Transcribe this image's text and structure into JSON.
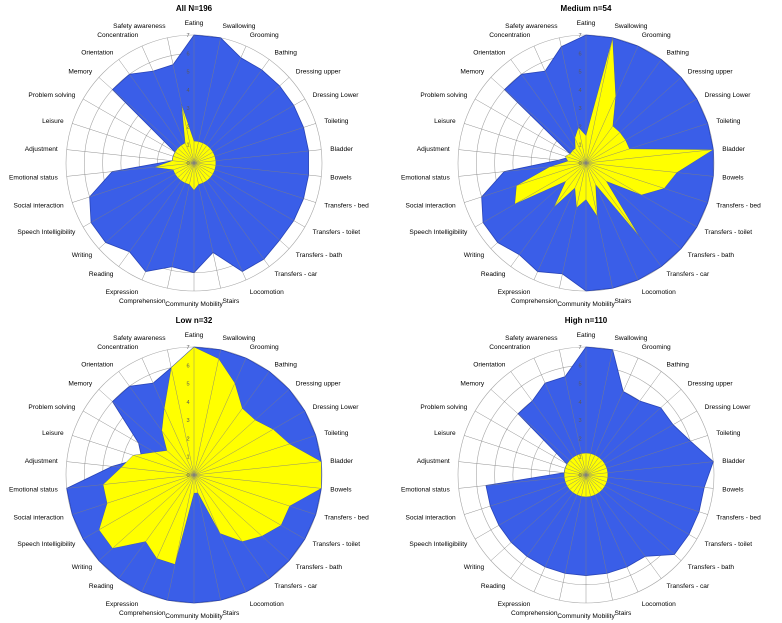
{
  "chart_data": [
    {
      "type": "radar",
      "title": "All N=196",
      "rlim": [
        0,
        7
      ],
      "r_ticks": [
        "0",
        "1",
        "2",
        "3",
        "4",
        "5",
        "6",
        "7"
      ],
      "grid": true,
      "categories": [
        "Eating",
        "Swallowing",
        "Grooming",
        "Bathing",
        "Dressing upper",
        "Dressing Lower",
        "Toileting",
        "Bladder",
        "Bowels",
        "Transfers - bed",
        "Transfers - toilet",
        "Transfers - bath",
        "Transfers - car",
        "Locomotion",
        "Stairs",
        "Community Mobility",
        "Comprehension",
        "Expression",
        "Reading",
        "Writing",
        "Speech Intelligibility",
        "Social interaction",
        "Emotional status",
        "Adjustment",
        "Leisure",
        "Problem solving",
        "Memory",
        "Orientation",
        "Concentration",
        "Safety awareness"
      ],
      "series": [
        {
          "color": "#3a5ee8",
          "values": [
            7,
            7,
            6.3,
            6.3,
            6.3,
            6.3,
            6.3,
            6.3,
            6.3,
            6.3,
            6.3,
            6.3,
            6.5,
            6.5,
            5,
            6,
            5.8,
            6.5,
            6,
            6.5,
            6.5,
            6,
            4.5,
            1.2,
            1.2,
            1.2,
            6,
            6,
            5.5,
            5.5
          ]
        },
        {
          "color": "#ffff00",
          "values": [
            1.2,
            1.2,
            1.2,
            1.2,
            1.2,
            1.2,
            1.2,
            1.2,
            1.2,
            1.2,
            1.2,
            1.2,
            1.2,
            1.2,
            1.2,
            1.5,
            1.2,
            1.2,
            1.2,
            1.2,
            1.2,
            1.2,
            2.2,
            1.2,
            1.2,
            1.2,
            1.2,
            1.2,
            1.2,
            3.3
          ]
        }
      ]
    },
    {
      "type": "radar",
      "title": "Medium n=54",
      "rlim": [
        0,
        7
      ],
      "r_ticks": [
        "0",
        "1",
        "2",
        "3",
        "4",
        "5",
        "6",
        "7"
      ],
      "grid": true,
      "categories": [
        "Eating",
        "Swallowing",
        "Grooming",
        "Bathing",
        "Dressing upper",
        "Dressing Lower",
        "Toileting",
        "Bladder",
        "Bowels",
        "Transfers - bed",
        "Transfers - toilet",
        "Transfers - bath",
        "Transfers - car",
        "Locomotion",
        "Stairs",
        "Community Mobility",
        "Comprehension",
        "Expression",
        "Reading",
        "Writing",
        "Speech Intelligibility",
        "Social interaction",
        "Emotional status",
        "Adjustment",
        "Leisure",
        "Problem solving",
        "Memory",
        "Orientation",
        "Concentration",
        "Safety awareness"
      ],
      "series": [
        {
          "color": "#3a5ee8",
          "values": [
            7,
            7,
            7,
            7,
            7,
            7,
            7,
            7,
            7,
            7,
            7,
            7,
            7,
            7,
            7,
            7,
            6.2,
            6.5,
            6.2,
            6.5,
            6.5,
            6,
            4.5,
            1.5,
            1,
            1,
            6,
            6,
            5.5,
            6.5
          ]
        },
        {
          "color": "#ffff00",
          "values": [
            1.5,
            7,
            4,
            2.5,
            2.5,
            2.5,
            2.5,
            7,
            5,
            4.5,
            3.5,
            1.5,
            5,
            1.3,
            3,
            2,
            2.5,
            1.5,
            3,
            1.5,
            4.5,
            4,
            2,
            1,
            1.2,
            1,
            1,
            1,
            1.5,
            2
          ]
        }
      ]
    },
    {
      "type": "radar",
      "title": "Low n=32",
      "rlim": [
        0,
        7
      ],
      "r_ticks": [
        "0",
        "1",
        "2",
        "3",
        "4",
        "5",
        "6",
        "7"
      ],
      "grid": true,
      "categories": [
        "Eating",
        "Swallowing",
        "Grooming",
        "Bathing",
        "Dressing upper",
        "Dressing Lower",
        "Toileting",
        "Bladder",
        "Bowels",
        "Transfers - bed",
        "Transfers - toilet",
        "Transfers - bath",
        "Transfers - car",
        "Locomotion",
        "Stairs",
        "Community Mobility",
        "Comprehension",
        "Expression",
        "Reading",
        "Writing",
        "Speech Intelligibility",
        "Social interaction",
        "Emotional status",
        "Adjustment",
        "Leisure",
        "Problem solving",
        "Memory",
        "Orientation",
        "Concentration",
        "Safety awareness"
      ],
      "series": [
        {
          "color": "#3a5ee8",
          "values": [
            7,
            7,
            7,
            7,
            7,
            7,
            7,
            7,
            7,
            7,
            7,
            7,
            7,
            7,
            7,
            7,
            7,
            7,
            7,
            7,
            7,
            7,
            7,
            4.5,
            3,
            3.5,
            6,
            6,
            5.5,
            6
          ]
        },
        {
          "color": "#ffff00",
          "values": [
            7,
            6.5,
            5.5,
            4.5,
            4.5,
            5,
            5.5,
            7,
            7,
            5.5,
            5.5,
            5,
            4.5,
            3.5,
            1,
            1,
            5,
            5,
            4.5,
            6,
            6,
            5,
            5,
            4,
            3.5,
            2.5,
            2,
            3,
            4,
            6
          ]
        }
      ]
    },
    {
      "type": "radar",
      "title": "High n=110",
      "rlim": [
        0,
        7
      ],
      "r_ticks": [
        "0",
        "1",
        "2",
        "3",
        "4",
        "5",
        "6",
        "7"
      ],
      "grid": true,
      "categories": [
        "Eating",
        "Swallowing",
        "Grooming",
        "Bathing",
        "Dressing upper",
        "Dressing Lower",
        "Toileting",
        "Bladder",
        "Bowels",
        "Transfers - bed",
        "Transfers - toilet",
        "Transfers - bath",
        "Transfers - car",
        "Locomotion",
        "Stairs",
        "Community Mobility",
        "Comprehension",
        "Expression",
        "Reading",
        "Writing",
        "Speech Intelligibility",
        "Social interaction",
        "Emotional status",
        "Adjustment",
        "Leisure",
        "Problem solving",
        "Memory",
        "Orientation",
        "Concentration",
        "Safety awareness"
      ],
      "series": [
        {
          "color": "#3a5ee8",
          "values": [
            7,
            7,
            5,
            5,
            5.5,
            5.5,
            6,
            7,
            6.5,
            6.5,
            6.5,
            6.5,
            5.5,
            5.5,
            5.5,
            5.5,
            5.5,
            5.5,
            5.5,
            5.5,
            5.5,
            5.5,
            5.5,
            1.2,
            1.2,
            1.2,
            5,
            5,
            5.5,
            5.5
          ]
        },
        {
          "color": "#ffff00",
          "values": [
            1.2,
            1.2,
            1.2,
            1.2,
            1.2,
            1.2,
            1.2,
            1.2,
            1.2,
            1.2,
            1.2,
            1.2,
            1.2,
            1.2,
            1.2,
            1.2,
            1.2,
            1.2,
            1.2,
            1.2,
            1.2,
            1.2,
            1.2,
            1.2,
            1.2,
            1.2,
            1.2,
            1.2,
            1.2,
            1.2
          ]
        }
      ]
    }
  ]
}
